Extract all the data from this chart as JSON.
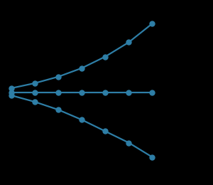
{
  "background_color": "#000000",
  "line_color": "#2e7ea6",
  "marker_color": "#2e7ea6",
  "x_points": [
    0,
    1,
    2,
    3,
    4,
    5,
    6
  ],
  "normal_y": [
    0.3,
    0.65,
    1.1,
    1.7,
    2.5,
    3.5,
    4.8
  ],
  "flat_y": [
    0.0,
    0.0,
    0.0,
    0.0,
    0.0,
    0.0,
    0.0
  ],
  "inverted_y": [
    -0.2,
    -0.65,
    -1.2,
    -1.9,
    -2.7,
    -3.5,
    -4.5
  ],
  "linewidth": 1.6,
  "markersize": 5,
  "xlim": [
    -0.3,
    6.5
  ],
  "ylim": [
    -5.8,
    5.8
  ]
}
